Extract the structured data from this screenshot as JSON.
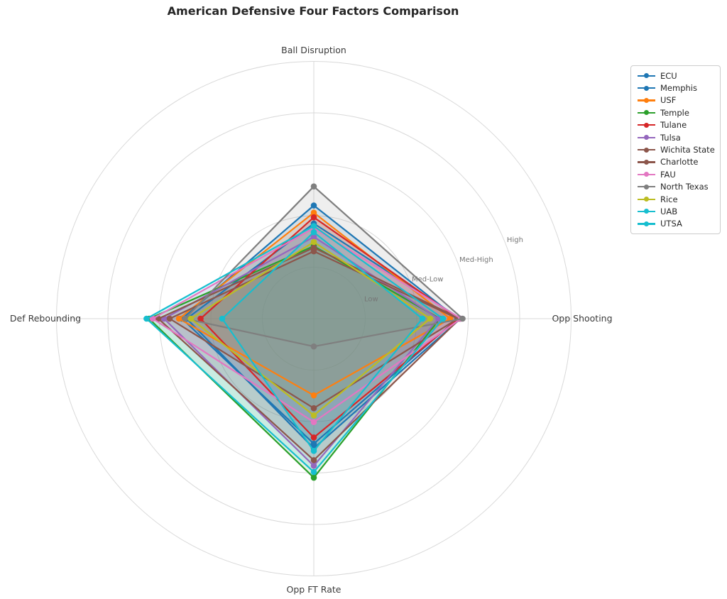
{
  "title": "American Defensive Four Factors Comparison",
  "chart_data": {
    "type": "radar",
    "axes": [
      "Ball Disruption",
      "Opp Shooting",
      "Opp FT Rate",
      "Def Rebounding"
    ],
    "tick_labels": [
      "Low",
      "Med-Low",
      "Med-High",
      "High"
    ],
    "tick_values": [
      1,
      2,
      3,
      4
    ],
    "rmax": 5,
    "grid": true,
    "legend_position": "upper right",
    "grid_color": "#d9d9d9",
    "series": [
      {
        "name": "ECU",
        "color": "#1f77b4",
        "values": [
          2.2,
          2.79,
          2.43,
          2.56
        ]
      },
      {
        "name": "Memphis",
        "color": "#1f77b4",
        "values": [
          1.85,
          2.85,
          2.52,
          2.47
        ]
      },
      {
        "name": "USF",
        "color": "#ff7f0e",
        "values": [
          2.06,
          2.65,
          1.49,
          2.62
        ]
      },
      {
        "name": "Temple",
        "color": "#2ca02c",
        "values": [
          1.41,
          2.45,
          3.09,
          3.2
        ]
      },
      {
        "name": "Tulane",
        "color": "#d62728",
        "values": [
          1.97,
          2.81,
          2.31,
          2.2
        ]
      },
      {
        "name": "Tulsa",
        "color": "#9467bd",
        "values": [
          1.59,
          2.42,
          2.86,
          2.91
        ]
      },
      {
        "name": "Wichita State",
        "color": "#8c564b",
        "values": [
          1.38,
          2.84,
          2.75,
          3.02
        ]
      },
      {
        "name": "Charlotte",
        "color": "#8c564b",
        "values": [
          1.31,
          2.8,
          1.74,
          2.8
        ]
      },
      {
        "name": "FAU",
        "color": "#e377c2",
        "values": [
          1.76,
          2.86,
          2.01,
          3.13
        ]
      },
      {
        "name": "North Texas",
        "color": "#7f7f7f",
        "values": [
          2.57,
          2.89,
          0.54,
          2.5
        ]
      },
      {
        "name": "Rice",
        "color": "#bcbd22",
        "values": [
          1.49,
          2.26,
          1.88,
          2.39
        ]
      },
      {
        "name": "UAB",
        "color": "#17becf",
        "values": [
          1.8,
          2.51,
          2.98,
          3.25
        ]
      },
      {
        "name": "UTSA",
        "color": "#17becf",
        "values": [
          1.68,
          2.11,
          2.57,
          1.78
        ]
      }
    ]
  }
}
